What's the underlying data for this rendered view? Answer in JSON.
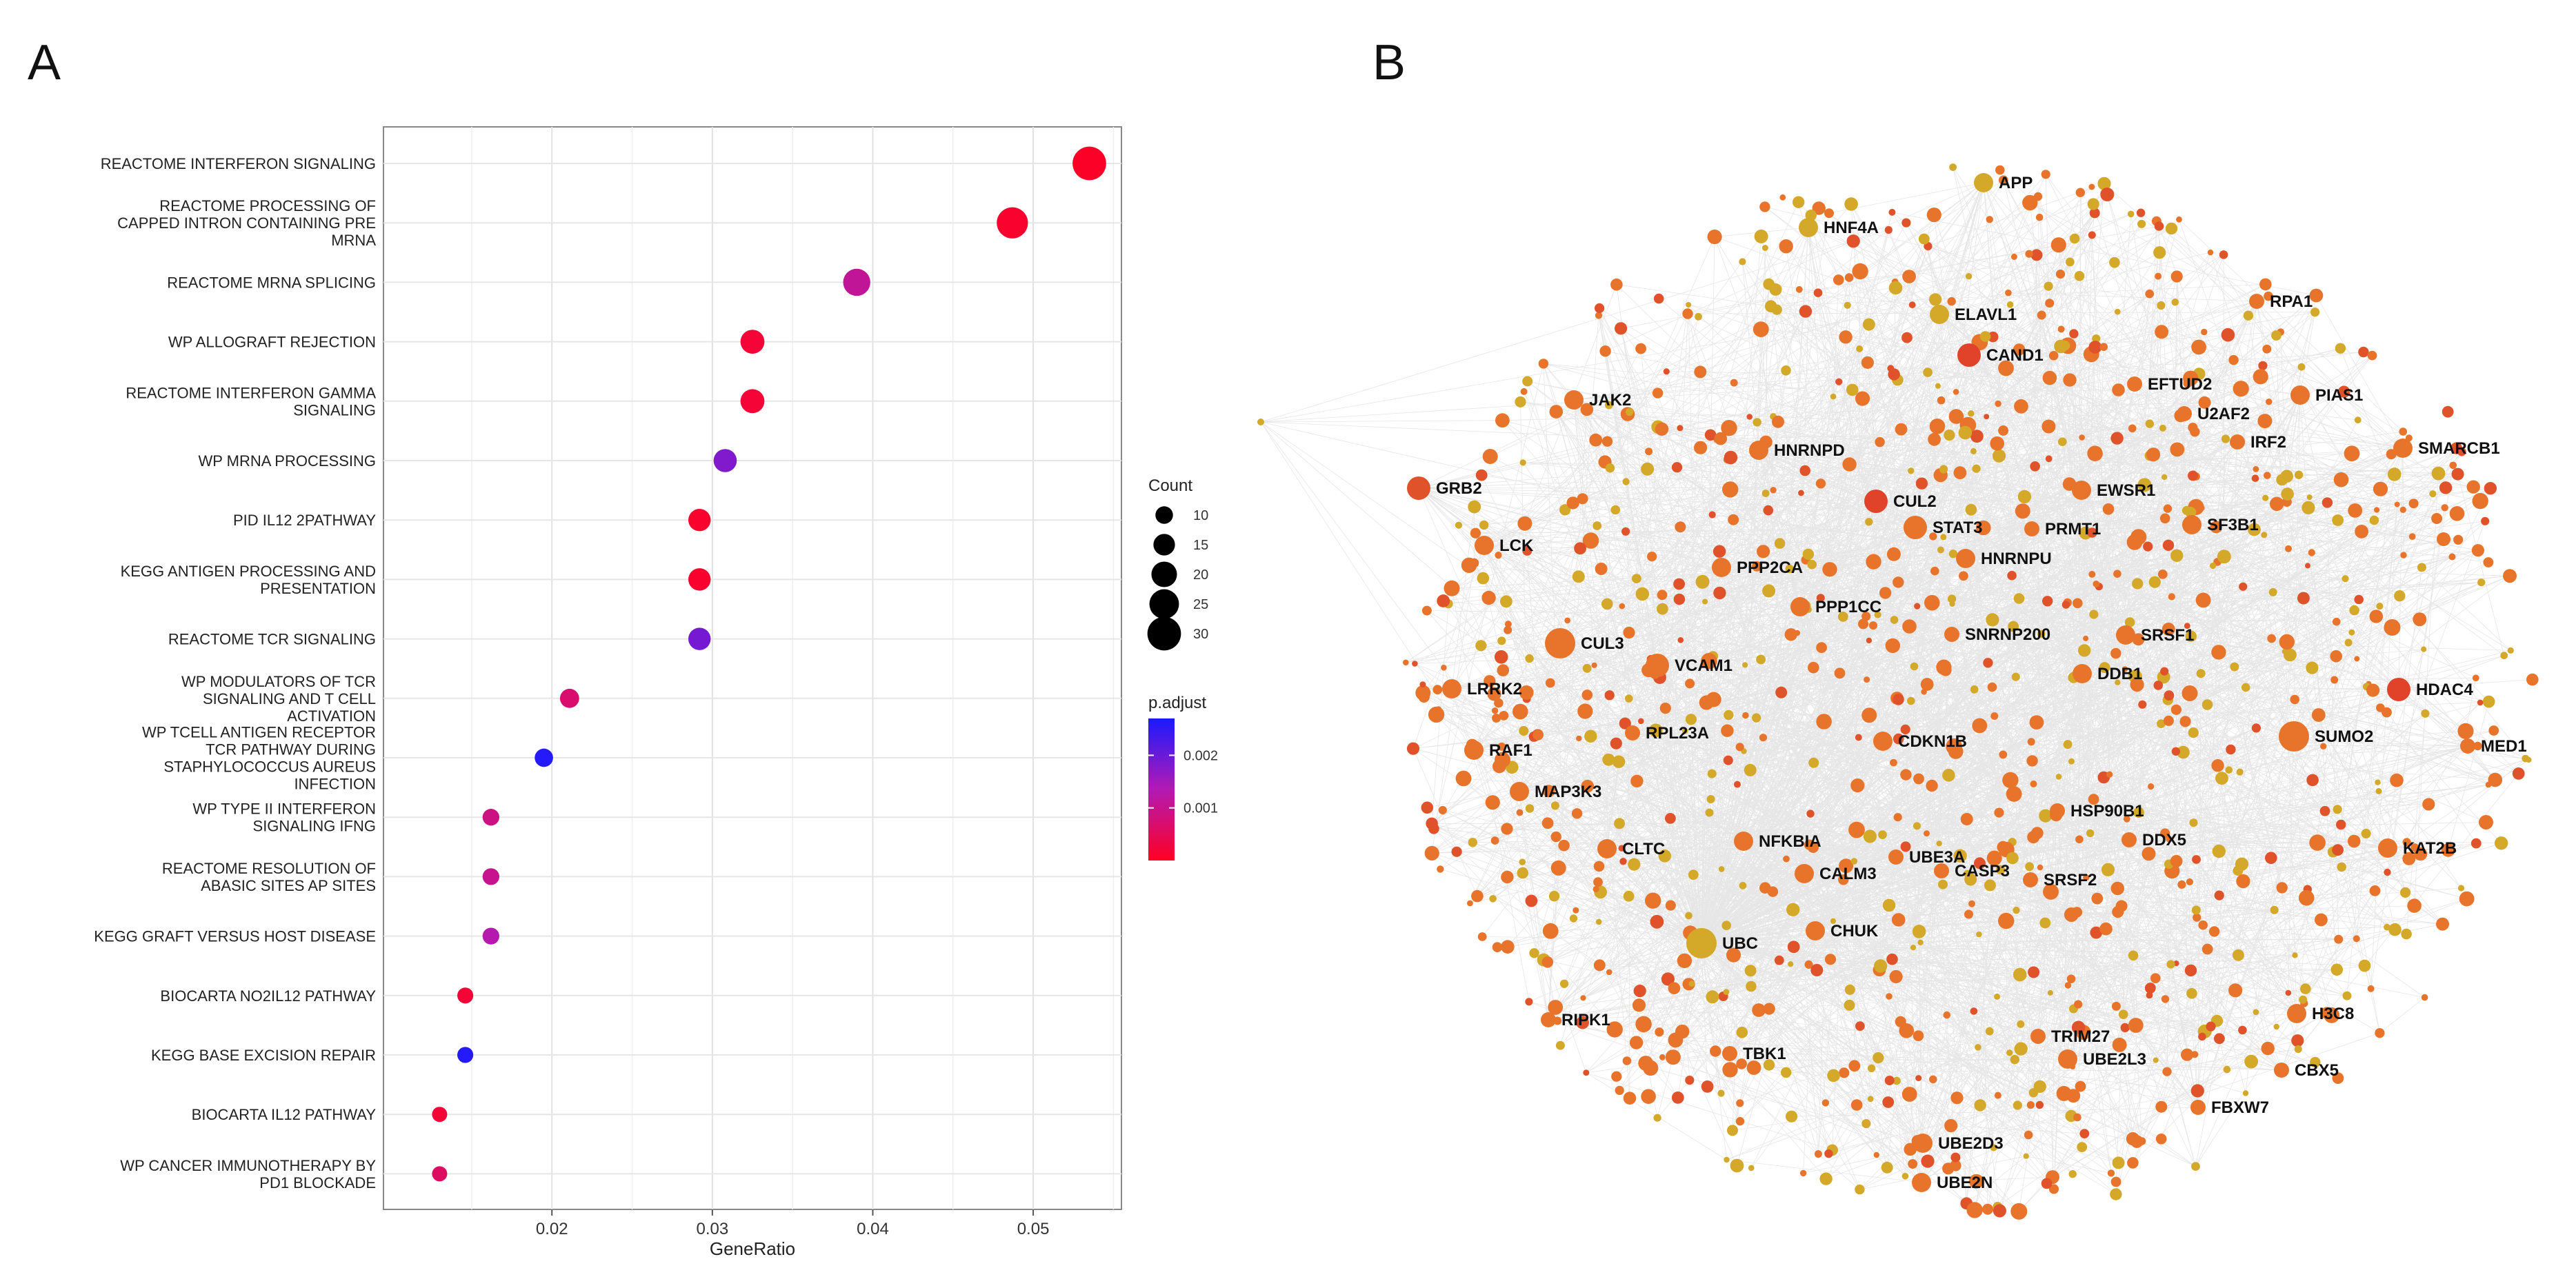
{
  "figure": {
    "panel_a_label": "A",
    "panel_b_label": "B"
  },
  "chart_data": [
    {
      "type": "scatter",
      "subtype": "dot-plot",
      "xlabel": "GeneRatio",
      "ylabel": "",
      "xlim": [
        0.0095,
        0.0555
      ],
      "xticks": [
        0.02,
        0.03,
        0.04,
        0.05
      ],
      "xtick_labels": [
        "0.02",
        "0.03",
        "0.04",
        "0.05"
      ],
      "grid": true,
      "legend_position": "right",
      "size_legend": {
        "title": "Count",
        "values": [
          10,
          15,
          20,
          25,
          30
        ]
      },
      "color_legend": {
        "title": "p.adjust",
        "ticks": [
          0.001,
          0.002
        ],
        "tick_labels": [
          "0.001",
          "0.002"
        ],
        "range": [
          0.0,
          0.0027
        ],
        "low_color": "#ff0022",
        "mid_color": "#b31ab3",
        "high_color": "#1a1aff"
      },
      "terms": [
        {
          "label": [
            "REACTOME INTERFERON SIGNALING"
          ],
          "gene_ratio": 0.0535,
          "count": 30,
          "p_adjust": 5e-05
        },
        {
          "label": [
            "REACTOME PROCESSING OF",
            "CAPPED INTRON CONTAINING PRE",
            "MRNA"
          ],
          "gene_ratio": 0.0487,
          "count": 27,
          "p_adjust": 0.0001
        },
        {
          "label": [
            "REACTOME MRNA SPLICING"
          ],
          "gene_ratio": 0.039,
          "count": 22,
          "p_adjust": 0.0011
        },
        {
          "label": [
            "WP ALLOGRAFT REJECTION"
          ],
          "gene_ratio": 0.0325,
          "count": 18,
          "p_adjust": 0.0002
        },
        {
          "label": [
            "REACTOME INTERFERON GAMMA",
            "SIGNALING"
          ],
          "gene_ratio": 0.0325,
          "count": 18,
          "p_adjust": 0.0002
        },
        {
          "label": [
            "WP MRNA PROCESSING"
          ],
          "gene_ratio": 0.0308,
          "count": 17,
          "p_adjust": 0.0018
        },
        {
          "label": [
            "PID IL12 2PATHWAY"
          ],
          "gene_ratio": 0.0292,
          "count": 16,
          "p_adjust": 0.0001
        },
        {
          "label": [
            "KEGG ANTIGEN PROCESSING AND",
            "PRESENTATION"
          ],
          "gene_ratio": 0.0292,
          "count": 16,
          "p_adjust": 0.0001
        },
        {
          "label": [
            "REACTOME TCR SIGNALING"
          ],
          "gene_ratio": 0.0292,
          "count": 16,
          "p_adjust": 0.0019
        },
        {
          "label": [
            "WP MODULATORS OF TCR",
            "SIGNALING AND T CELL",
            "ACTIVATION"
          ],
          "gene_ratio": 0.0211,
          "count": 12,
          "p_adjust": 0.0007
        },
        {
          "label": [
            "WP TCELL ANTIGEN RECEPTOR",
            "TCR PATHWAY DURING",
            "STAPHYLOCOCCUS AUREUS",
            "INFECTION"
          ],
          "gene_ratio": 0.0195,
          "count": 11,
          "p_adjust": 0.0026
        },
        {
          "label": [
            "WP TYPE II INTERFERON",
            "SIGNALING IFNG"
          ],
          "gene_ratio": 0.0162,
          "count": 9,
          "p_adjust": 0.0009
        },
        {
          "label": [
            "REACTOME RESOLUTION OF",
            "ABASIC SITES AP SITES"
          ],
          "gene_ratio": 0.0162,
          "count": 9,
          "p_adjust": 0.001
        },
        {
          "label": [
            "KEGG GRAFT VERSUS HOST DISEASE"
          ],
          "gene_ratio": 0.0162,
          "count": 9,
          "p_adjust": 0.0013
        },
        {
          "label": [
            "BIOCARTA NO2IL12 PATHWAY"
          ],
          "gene_ratio": 0.0146,
          "count": 8,
          "p_adjust": 0.0002
        },
        {
          "label": [
            "KEGG BASE EXCISION REPAIR"
          ],
          "gene_ratio": 0.0146,
          "count": 8,
          "p_adjust": 0.0026
        },
        {
          "label": [
            "BIOCARTA IL12 PATHWAY"
          ],
          "gene_ratio": 0.013,
          "count": 7,
          "p_adjust": 0.0002
        },
        {
          "label": [
            "WP CANCER IMMUNOTHERAPY BY",
            "PD1 BLOCKADE"
          ],
          "gene_ratio": 0.013,
          "count": 7,
          "p_adjust": 0.0006
        }
      ]
    },
    {
      "type": "network",
      "description_colors": {
        "high_degree": "#e0532a",
        "medium": "#e8742c",
        "low_degree": "#d4a92a",
        "edges": "#c8c8c8"
      },
      "labeled_nodes": [
        {
          "name": "APP",
          "color": "#d4a92a",
          "size": 3
        },
        {
          "name": "HNF4A",
          "color": "#d4a92a",
          "size": 3
        },
        {
          "name": "ELAVL1",
          "color": "#d4a92a",
          "size": 3
        },
        {
          "name": "CAND1",
          "color": "#e0422a",
          "size": 4
        },
        {
          "name": "RPA1",
          "color": "#e8742c",
          "size": 2
        },
        {
          "name": "EFTUD2",
          "color": "#e8742c",
          "size": 2
        },
        {
          "name": "PIAS1",
          "color": "#e8742c",
          "size": 3
        },
        {
          "name": "U2AF2",
          "color": "#e8742c",
          "size": 2
        },
        {
          "name": "JAK2",
          "color": "#e8742c",
          "size": 3
        },
        {
          "name": "IRF2",
          "color": "#e8742c",
          "size": 2
        },
        {
          "name": "SMARCB1",
          "color": "#e8742c",
          "size": 3
        },
        {
          "name": "HNRNPD",
          "color": "#e8742c",
          "size": 3
        },
        {
          "name": "GRB2",
          "color": "#e0532a",
          "size": 4
        },
        {
          "name": "CUL2",
          "color": "#e0422a",
          "size": 4
        },
        {
          "name": "EWSR1",
          "color": "#e8742c",
          "size": 3
        },
        {
          "name": "STAT3",
          "color": "#e8742c",
          "size": 4
        },
        {
          "name": "PRMT1",
          "color": "#e8742c",
          "size": 2
        },
        {
          "name": "SF3B1",
          "color": "#e8742c",
          "size": 3
        },
        {
          "name": "LCK",
          "color": "#e8742c",
          "size": 3
        },
        {
          "name": "HNRNPU",
          "color": "#e8742c",
          "size": 3
        },
        {
          "name": "PPP2CA",
          "color": "#e8742c",
          "size": 3
        },
        {
          "name": "PPP1CC",
          "color": "#e8742c",
          "size": 3
        },
        {
          "name": "CUL3",
          "color": "#e8742c",
          "size": 5
        },
        {
          "name": "SNRNP200",
          "color": "#e8742c",
          "size": 2
        },
        {
          "name": "SRSF1",
          "color": "#e8742c",
          "size": 3
        },
        {
          "name": "VCAM1",
          "color": "#e8742c",
          "size": 4
        },
        {
          "name": "DDB1",
          "color": "#e8742c",
          "size": 3
        },
        {
          "name": "LRRK2",
          "color": "#e8742c",
          "size": 3
        },
        {
          "name": "HDAC4",
          "color": "#e0422a",
          "size": 4
        },
        {
          "name": "RPL23A",
          "color": "#e8742c",
          "size": 2
        },
        {
          "name": "CDKN1B",
          "color": "#e8742c",
          "size": 3
        },
        {
          "name": "SUMO2",
          "color": "#e8742c",
          "size": 5
        },
        {
          "name": "MED1",
          "color": "#e8742c",
          "size": 2
        },
        {
          "name": "RAF1",
          "color": "#e8742c",
          "size": 3
        },
        {
          "name": "MAP3K3",
          "color": "#e8742c",
          "size": 3
        },
        {
          "name": "HSP90B1",
          "color": "#e8742c",
          "size": 2
        },
        {
          "name": "DDX5",
          "color": "#e8742c",
          "size": 2
        },
        {
          "name": "NFKBIA",
          "color": "#e8742c",
          "size": 3
        },
        {
          "name": "CLTC",
          "color": "#e8742c",
          "size": 3
        },
        {
          "name": "UBE3A",
          "color": "#e8742c",
          "size": 2
        },
        {
          "name": "KAT2B",
          "color": "#e8742c",
          "size": 3
        },
        {
          "name": "CALM3",
          "color": "#e8742c",
          "size": 3
        },
        {
          "name": "CASP3",
          "color": "#e8742c",
          "size": 2
        },
        {
          "name": "SRSF2",
          "color": "#e8742c",
          "size": 2
        },
        {
          "name": "UBC",
          "color": "#d4a92a",
          "size": 5
        },
        {
          "name": "CHUK",
          "color": "#e8742c",
          "size": 3
        },
        {
          "name": "RIPK1",
          "color": "#e8742c",
          "size": 2
        },
        {
          "name": "H3C8",
          "color": "#e8742c",
          "size": 3
        },
        {
          "name": "TRIM27",
          "color": "#e8742c",
          "size": 2
        },
        {
          "name": "TBK1",
          "color": "#e8742c",
          "size": 2
        },
        {
          "name": "UBE2L3",
          "color": "#e8742c",
          "size": 3
        },
        {
          "name": "CBX5",
          "color": "#e8742c",
          "size": 2
        },
        {
          "name": "FBXW7",
          "color": "#e8742c",
          "size": 2
        },
        {
          "name": "UBE2D3",
          "color": "#e8742c",
          "size": 3
        },
        {
          "name": "UBE2N",
          "color": "#e8742c",
          "size": 3
        }
      ]
    }
  ]
}
